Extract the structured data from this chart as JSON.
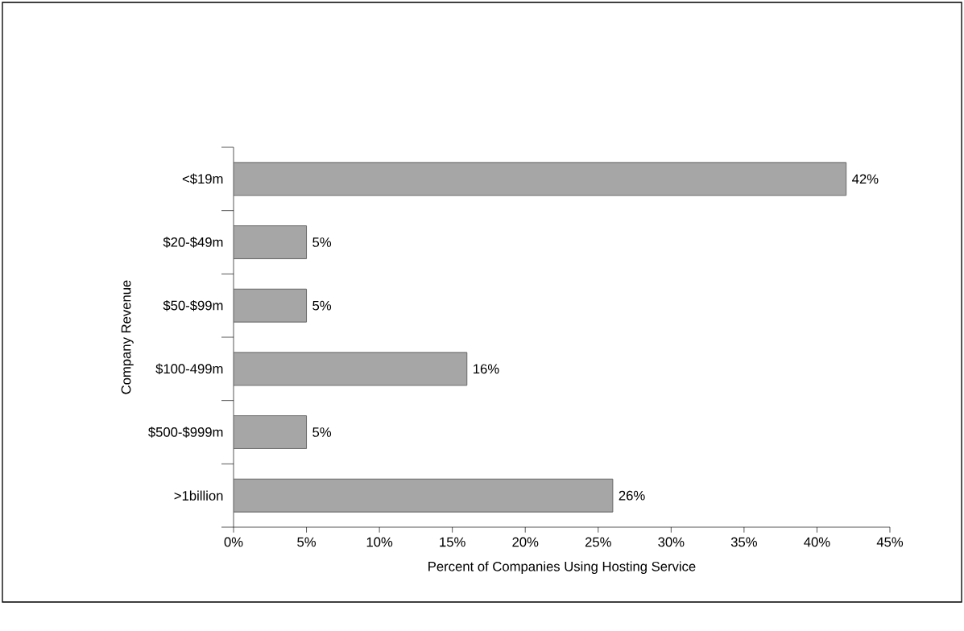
{
  "chart_data": {
    "type": "bar",
    "orientation": "horizontal",
    "categories": [
      "<$19m",
      "$20-$49m",
      "$50-$99m",
      "$100-499m",
      "$500-$999m",
      ">1billion"
    ],
    "values": [
      42,
      5,
      5,
      16,
      5,
      26
    ],
    "value_labels": [
      "42%",
      "5%",
      "5%",
      "16%",
      "5%",
      "26%"
    ],
    "color": "#a6a6a6",
    "xlabel": "Percent of Companies Using Hosting Service",
    "ylabel": "Company Revenue",
    "xlim": [
      0,
      45
    ],
    "xticks": [
      {
        "value": 0,
        "label": "0%"
      },
      {
        "value": 5,
        "label": "5%"
      },
      {
        "value": 10,
        "label": "10%"
      },
      {
        "value": 15,
        "label": "15%"
      },
      {
        "value": 20,
        "label": "20%"
      },
      {
        "value": 25,
        "label": "25%"
      },
      {
        "value": 30,
        "label": "30%"
      },
      {
        "value": 35,
        "label": "35%"
      },
      {
        "value": 40,
        "label": "40%"
      },
      {
        "value": 45,
        "label": "45%"
      }
    ],
    "grid": false
  }
}
